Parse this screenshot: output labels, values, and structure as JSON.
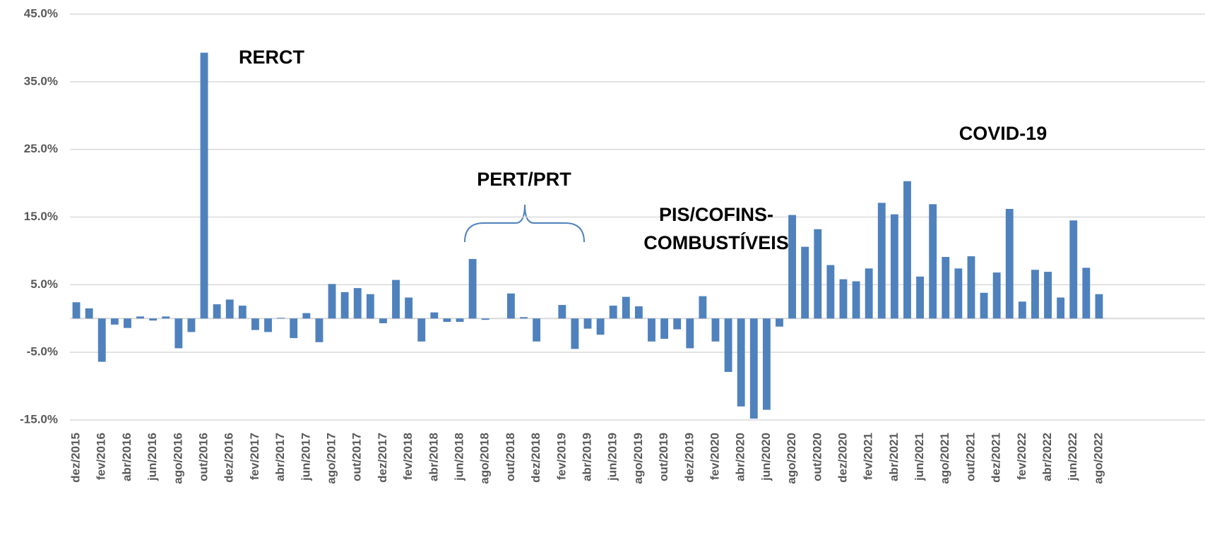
{
  "chart_data": {
    "type": "bar",
    "categories": [
      "dez/2015",
      null,
      "fev/2016",
      null,
      "abr/2016",
      null,
      "jun/2016",
      null,
      "ago/2016",
      null,
      "out/2016",
      null,
      "dez/2016",
      null,
      "fev/2017",
      null,
      "abr/2017",
      null,
      "jun/2017",
      null,
      "ago/2017",
      null,
      "out/2017",
      null,
      "dez/2017",
      null,
      "fev/2018",
      null,
      "abr/2018",
      null,
      "jun/2018",
      null,
      "ago/2018",
      null,
      "out/2018",
      null,
      "dez/2018",
      null,
      "fev/2019",
      null,
      "abr/2019",
      null,
      "jun/2019",
      null,
      "ago/2019",
      null,
      "out/2019",
      null,
      "dez/2019",
      null,
      "fev/2020",
      null,
      "abr/2020",
      null,
      "jun/2020",
      null,
      "ago/2020",
      null,
      "out/2020",
      null,
      "dez/2020",
      null,
      "fev/2021",
      null,
      "abr/2021",
      null,
      "jun/2021",
      null,
      "ago/2021",
      null,
      "out/2021",
      null,
      "dez/2021",
      null,
      "fev/2022",
      null,
      "abr/2022",
      null,
      "jun/2022",
      null,
      "ago/2022"
    ],
    "values": [
      2.4,
      1.5,
      -6.4,
      -0.9,
      -1.4,
      0.3,
      -0.3,
      0.3,
      -4.4,
      -2.0,
      39.3,
      2.1,
      2.8,
      1.9,
      -1.7,
      -2.0,
      0.1,
      -2.9,
      0.8,
      -3.5,
      5.1,
      3.9,
      4.5,
      3.6,
      -0.7,
      5.7,
      3.1,
      -3.4,
      0.9,
      -0.5,
      -0.5,
      8.8,
      -0.2,
      0,
      3.7,
      0.2,
      -3.4,
      0,
      2.0,
      -4.5,
      -1.5,
      -2.4,
      1.9,
      3.2,
      1.8,
      -3.4,
      -3.0,
      -1.6,
      -4.4,
      3.3,
      -3.4,
      -7.9,
      -13.0,
      -14.8,
      -13.5,
      -1.2,
      15.3,
      10.6,
      13.2,
      7.9,
      5.8,
      5.5,
      7.4,
      17.1,
      15.4,
      20.3,
      6.2,
      16.9,
      9.1,
      7.4,
      9.2,
      3.8,
      6.8,
      16.2,
      2.5,
      7.2,
      6.9,
      3.1,
      14.5,
      7.5,
      3.6
    ],
    "color": "#4f81bd",
    "ylim": [
      -15,
      45
    ],
    "yticks": [
      {
        "value": -15,
        "label": "-15.0%"
      },
      {
        "value": -5,
        "label": "-5.0%"
      },
      {
        "value": 5,
        "label": "5.0%"
      },
      {
        "value": 15,
        "label": "15.0%"
      },
      {
        "value": 25,
        "label": "25.0%"
      },
      {
        "value": 35,
        "label": "35.0%"
      },
      {
        "value": 45,
        "label": "45.0%"
      }
    ],
    "grid": true,
    "annotations": [
      "RERCT",
      "PERT/PRT",
      "PIS/COFINS-",
      "COMBUSTÍVEIS",
      "COVID-19"
    ]
  }
}
